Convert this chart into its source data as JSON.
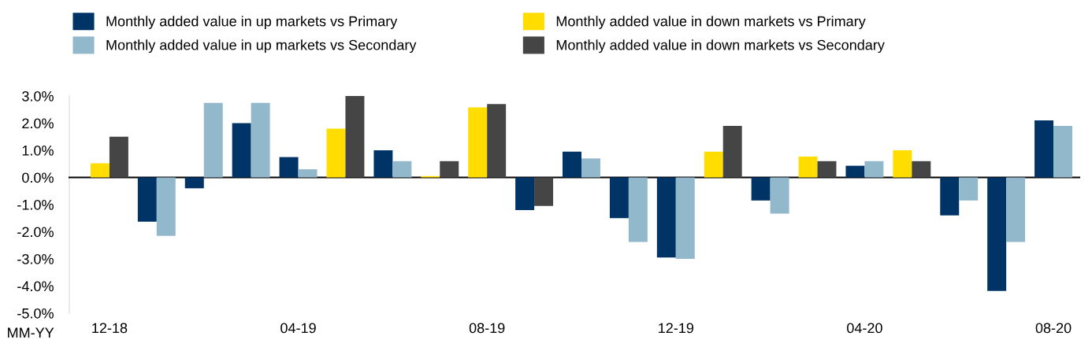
{
  "chart_data": {
    "type": "bar",
    "xlabel": "MM-YY",
    "categories": [
      "12-18",
      null,
      null,
      null,
      "04-19",
      null,
      null,
      null,
      "08-19",
      null,
      null,
      null,
      "12-19",
      null,
      null,
      null,
      "04-20",
      null,
      null,
      null,
      "08-20"
    ],
    "series": [
      {
        "name": "Monthly added value in up markets vs Primary",
        "color": "#003366",
        "values": [
          null,
          -1.63,
          -0.4,
          2.0,
          0.75,
          null,
          1.0,
          null,
          null,
          -1.2,
          0.95,
          -1.5,
          -2.95,
          null,
          -0.85,
          null,
          0.43,
          null,
          -1.4,
          -4.18,
          2.1
        ]
      },
      {
        "name": "Monthly added value in up markets vs Secondary",
        "color": "#92b8cb",
        "values": [
          null,
          -2.15,
          2.75,
          2.75,
          0.3,
          null,
          0.6,
          null,
          null,
          null,
          0.7,
          -2.38,
          -3.0,
          null,
          -1.33,
          null,
          0.6,
          null,
          -0.85,
          -2.38,
          1.9
        ]
      },
      {
        "name": "Monthly added value in down markets vs Primary",
        "color": "#ffdd00",
        "values": [
          0.52,
          null,
          null,
          null,
          null,
          1.8,
          null,
          0.05,
          2.58,
          null,
          null,
          null,
          null,
          0.95,
          null,
          0.77,
          null,
          1.0,
          null,
          null,
          null
        ]
      },
      {
        "name": "Monthly added value in down markets vs Secondary",
        "color": "#454545",
        "values": [
          1.5,
          null,
          null,
          null,
          null,
          3.0,
          null,
          0.6,
          2.7,
          -1.05,
          null,
          null,
          null,
          1.9,
          null,
          0.6,
          null,
          0.6,
          null,
          null,
          null
        ]
      }
    ],
    "ylim": [
      -5,
      3
    ],
    "yticks": [
      {
        "value": 3,
        "label": "3.0%"
      },
      {
        "value": 2,
        "label": "2.0%"
      },
      {
        "value": 1,
        "label": "1.0%"
      },
      {
        "value": 0,
        "label": "0.0%"
      },
      {
        "value": -1,
        "label": "-1.0%"
      },
      {
        "value": -2,
        "label": "-2.0%"
      },
      {
        "value": -3,
        "label": "-3.0%"
      },
      {
        "value": -4,
        "label": "-4.0%"
      },
      {
        "value": -5,
        "label": "-5.0%"
      }
    ],
    "legend": "top"
  }
}
